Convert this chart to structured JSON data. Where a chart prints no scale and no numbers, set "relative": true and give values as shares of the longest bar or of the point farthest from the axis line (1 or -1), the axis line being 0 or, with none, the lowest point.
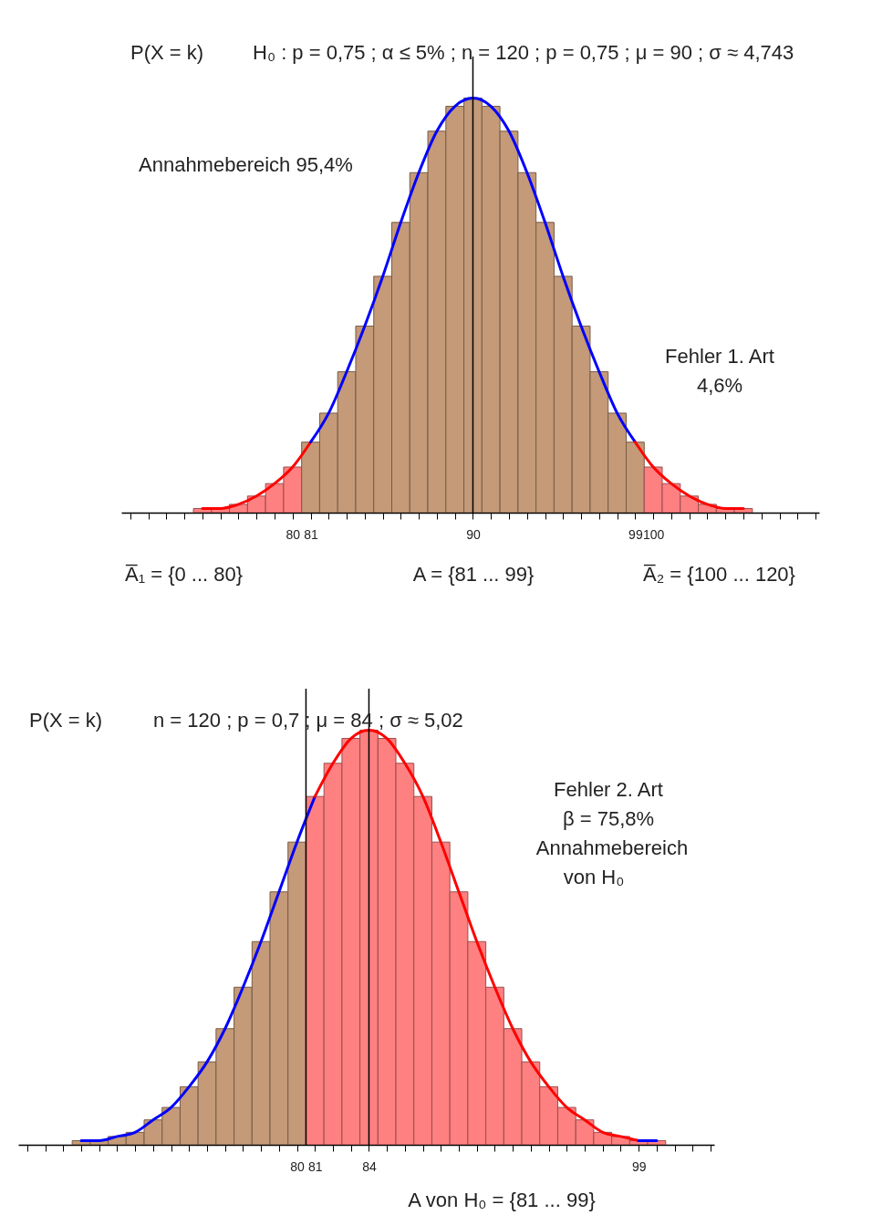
{
  "chart_data": [
    {
      "type": "bar",
      "relative": true,
      "title": "P(X = k)",
      "subtitle": "H₀ : p = 0,75 ; α ≤ 5% ; n = 120 ; p = 0,75 ; μ = 90 ; σ ≈ 4,743",
      "x": [
        75,
        76,
        77,
        78,
        79,
        80,
        81,
        82,
        83,
        84,
        85,
        86,
        87,
        88,
        89,
        90,
        91,
        92,
        93,
        94,
        95,
        96,
        97,
        98,
        99,
        100,
        101,
        102,
        103,
        104,
        105
      ],
      "values": [
        0.01,
        0.01,
        0.02,
        0.04,
        0.07,
        0.11,
        0.17,
        0.24,
        0.34,
        0.45,
        0.57,
        0.7,
        0.82,
        0.92,
        0.98,
        1,
        0.98,
        0.92,
        0.82,
        0.7,
        0.57,
        0.45,
        0.34,
        0.24,
        0.17,
        0.11,
        0.07,
        0.04,
        0.02,
        0.01,
        0.01
      ],
      "colors": [
        "#ff8080",
        "#ff8080",
        "#ff8080",
        "#ff8080",
        "#ff8080",
        "#ff8080",
        "#c49a78",
        "#c49a78",
        "#c49a78",
        "#c49a78",
        "#c49a78",
        "#c49a78",
        "#c49a78",
        "#c49a78",
        "#c49a78",
        "#c49a78",
        "#c49a78",
        "#c49a78",
        "#c49a78",
        "#c49a78",
        "#c49a78",
        "#c49a78",
        "#c49a78",
        "#c49a78",
        "#c49a78",
        "#ff8080",
        "#ff8080",
        "#ff8080",
        "#ff8080",
        "#ff8080",
        "#ff8080"
      ],
      "series": [
        {
          "type": "line",
          "color": "#ff0000",
          "x": [
            75,
            76,
            77,
            78,
            79,
            80,
            81
          ],
          "values": [
            0.01,
            0.01,
            0.02,
            0.04,
            0.07,
            0.11,
            0.17
          ]
        },
        {
          "type": "line",
          "color": "#0000ff",
          "x": [
            81,
            82,
            83,
            84,
            85,
            86,
            87,
            88,
            89,
            90,
            91,
            92,
            93,
            94,
            95,
            96,
            97,
            98,
            99
          ],
          "values": [
            0.17,
            0.24,
            0.34,
            0.45,
            0.57,
            0.7,
            0.82,
            0.92,
            0.98,
            1,
            0.98,
            0.92,
            0.82,
            0.7,
            0.57,
            0.45,
            0.34,
            0.24,
            0.17
          ]
        },
        {
          "type": "line",
          "color": "#ff0000",
          "x": [
            99,
            100,
            101,
            102,
            103,
            104,
            105
          ],
          "values": [
            0.17,
            0.11,
            0.07,
            0.04,
            0.02,
            0.01,
            0.01
          ]
        }
      ],
      "xlim": [
        70.5,
        109.2
      ],
      "xticks": [
        {
          "value": 71,
          "label": null
        },
        {
          "value": 72,
          "label": null
        },
        {
          "value": 73,
          "label": null
        },
        {
          "value": 74,
          "label": null
        },
        {
          "value": 75,
          "label": null
        },
        {
          "value": 76,
          "label": null
        },
        {
          "value": 77,
          "label": null
        },
        {
          "value": 78,
          "label": null
        },
        {
          "value": 79,
          "label": null
        },
        80,
        81,
        {
          "value": 82,
          "label": null
        },
        {
          "value": 83,
          "label": null
        },
        {
          "value": 84,
          "label": null
        },
        {
          "value": 85,
          "label": null
        },
        {
          "value": 86,
          "label": null
        },
        {
          "value": 87,
          "label": null
        },
        {
          "value": 88,
          "label": null
        },
        {
          "value": 89,
          "label": null
        },
        90,
        {
          "value": 91,
          "label": null
        },
        {
          "value": 92,
          "label": null
        },
        {
          "value": 93,
          "label": null
        },
        {
          "value": 94,
          "label": null
        },
        {
          "value": 95,
          "label": null
        },
        {
          "value": 96,
          "label": null
        },
        {
          "value": 97,
          "label": null
        },
        {
          "value": 98,
          "label": null
        },
        99,
        100,
        {
          "value": 101,
          "label": null
        },
        {
          "value": 102,
          "label": null
        },
        {
          "value": 103,
          "label": null
        },
        {
          "value": 104,
          "label": null
        },
        {
          "value": 105,
          "label": null
        },
        {
          "value": 106,
          "label": null
        },
        {
          "value": 107,
          "label": null
        },
        {
          "value": 108,
          "label": null
        },
        {
          "value": 109,
          "label": null
        }
      ],
      "ref_lines": [
        {
          "axis": "x",
          "value": 90,
          "color": "#000000"
        }
      ],
      "annotations": [
        "Annahmebereich 95,4%",
        "Fehler 1. Art",
        "4,6%",
        "A̅₁ = {0 ... 80}",
        "A = {81 ... 99}",
        "A̅₂ = {100 ... 120}"
      ]
    },
    {
      "type": "bar",
      "relative": true,
      "title": "P(X = k)",
      "subtitle": "n = 120 ; p = 0,7 ; μ = 84 ; σ ≈ 5,02",
      "x": [
        68,
        69,
        70,
        71,
        72,
        73,
        74,
        75,
        76,
        77,
        78,
        79,
        80,
        81,
        82,
        83,
        84,
        85,
        86,
        87,
        88,
        89,
        90,
        91,
        92,
        93,
        94,
        95,
        96,
        97,
        98,
        99,
        100
      ],
      "values": [
        0.01,
        0.01,
        0.02,
        0.03,
        0.06,
        0.09,
        0.14,
        0.2,
        0.28,
        0.38,
        0.49,
        0.61,
        0.73,
        0.84,
        0.92,
        0.98,
        1,
        0.98,
        0.92,
        0.84,
        0.73,
        0.61,
        0.49,
        0.38,
        0.28,
        0.2,
        0.14,
        0.09,
        0.06,
        0.03,
        0.02,
        0.01,
        0.01
      ],
      "colors": [
        "#c49a78",
        "#c49a78",
        "#c49a78",
        "#c49a78",
        "#c49a78",
        "#c49a78",
        "#c49a78",
        "#c49a78",
        "#c49a78",
        "#c49a78",
        "#c49a78",
        "#c49a78",
        "#c49a78",
        "#ff8080",
        "#ff8080",
        "#ff8080",
        "#ff8080",
        "#ff8080",
        "#ff8080",
        "#ff8080",
        "#ff8080",
        "#ff8080",
        "#ff8080",
        "#ff8080",
        "#ff8080",
        "#ff8080",
        "#ff8080",
        "#ff8080",
        "#ff8080",
        "#ff8080",
        "#ff8080",
        "#ff8080",
        "#ff8080"
      ],
      "series": [
        {
          "type": "line",
          "color": "#0000ff",
          "x": [
            68,
            69,
            70,
            71,
            72,
            73,
            74,
            75,
            76,
            77,
            78,
            79,
            80,
            81
          ],
          "values": [
            0.01,
            0.01,
            0.02,
            0.03,
            0.06,
            0.09,
            0.14,
            0.2,
            0.28,
            0.38,
            0.49,
            0.61,
            0.73,
            0.84
          ]
        },
        {
          "type": "line",
          "color": "#ff0000",
          "x": [
            81,
            82,
            83,
            84,
            85,
            86,
            87,
            88,
            89,
            90,
            91,
            92,
            93,
            94,
            95,
            96,
            97,
            98,
            99
          ],
          "values": [
            0.84,
            0.92,
            0.98,
            1,
            0.98,
            0.92,
            0.84,
            0.73,
            0.61,
            0.49,
            0.38,
            0.28,
            0.2,
            0.14,
            0.09,
            0.06,
            0.03,
            0.02,
            0.01
          ]
        },
        {
          "type": "line",
          "color": "#0000ff",
          "x": [
            99,
            100
          ],
          "values": [
            0.01,
            0.01
          ]
        }
      ],
      "xlim": [
        64.5,
        103.2
      ],
      "xticks": [
        {
          "value": 65,
          "label": null
        },
        {
          "value": 66,
          "label": null
        },
        {
          "value": 67,
          "label": null
        },
        {
          "value": 68,
          "label": null
        },
        {
          "value": 69,
          "label": null
        },
        {
          "value": 70,
          "label": null
        },
        {
          "value": 71,
          "label": null
        },
        {
          "value": 72,
          "label": null
        },
        {
          "value": 73,
          "label": null
        },
        {
          "value": 74,
          "label": null
        },
        {
          "value": 75,
          "label": null
        },
        {
          "value": 76,
          "label": null
        },
        {
          "value": 77,
          "label": null
        },
        {
          "value": 78,
          "label": null
        },
        {
          "value": 79,
          "label": null
        },
        80,
        81,
        {
          "value": 82,
          "label": null
        },
        {
          "value": 83,
          "label": null
        },
        84,
        {
          "value": 85,
          "label": null
        },
        {
          "value": 86,
          "label": null
        },
        {
          "value": 87,
          "label": null
        },
        {
          "value": 88,
          "label": null
        },
        {
          "value": 89,
          "label": null
        },
        {
          "value": 90,
          "label": null
        },
        {
          "value": 91,
          "label": null
        },
        {
          "value": 92,
          "label": null
        },
        {
          "value": 93,
          "label": null
        },
        {
          "value": 94,
          "label": null
        },
        {
          "value": 95,
          "label": null
        },
        {
          "value": 96,
          "label": null
        },
        {
          "value": 97,
          "label": null
        },
        {
          "value": 98,
          "label": null
        },
        99,
        {
          "value": 100,
          "label": null
        },
        {
          "value": 101,
          "label": null
        },
        {
          "value": 102,
          "label": null
        },
        {
          "value": 103,
          "label": null
        }
      ],
      "ref_lines": [
        {
          "axis": "x",
          "value": 84,
          "color": "#000000"
        },
        {
          "axis": "x",
          "value": 80.5,
          "color": "#000000"
        }
      ],
      "annotations": [
        "Fehler 2. Art",
        "β = 75,8%",
        "Annahmebereich",
        "von H₀",
        "A von H₀ = {81 ... 99}"
      ]
    }
  ]
}
